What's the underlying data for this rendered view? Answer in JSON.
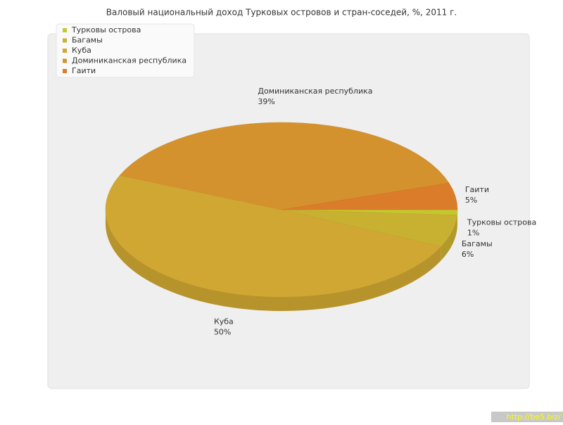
{
  "chart_data": {
    "type": "pie3d",
    "title": "Валовый национальный доход Турковых островов и стран-соседей, %, 2011 г.",
    "categories": [
      "Турковы острова",
      "Багамы",
      "Куба",
      "Доминиканская республика",
      "Гаити"
    ],
    "values": [
      1,
      6,
      50,
      39,
      5
    ],
    "value_labels": [
      "1%",
      "6%",
      "50%",
      "39%",
      "5%"
    ],
    "colors": [
      "#c4c82e",
      "#c8b030",
      "#d0a732",
      "#d4922e",
      "#da7c2a"
    ],
    "legend": "top-left",
    "watermark": "http://be5.biz/"
  }
}
